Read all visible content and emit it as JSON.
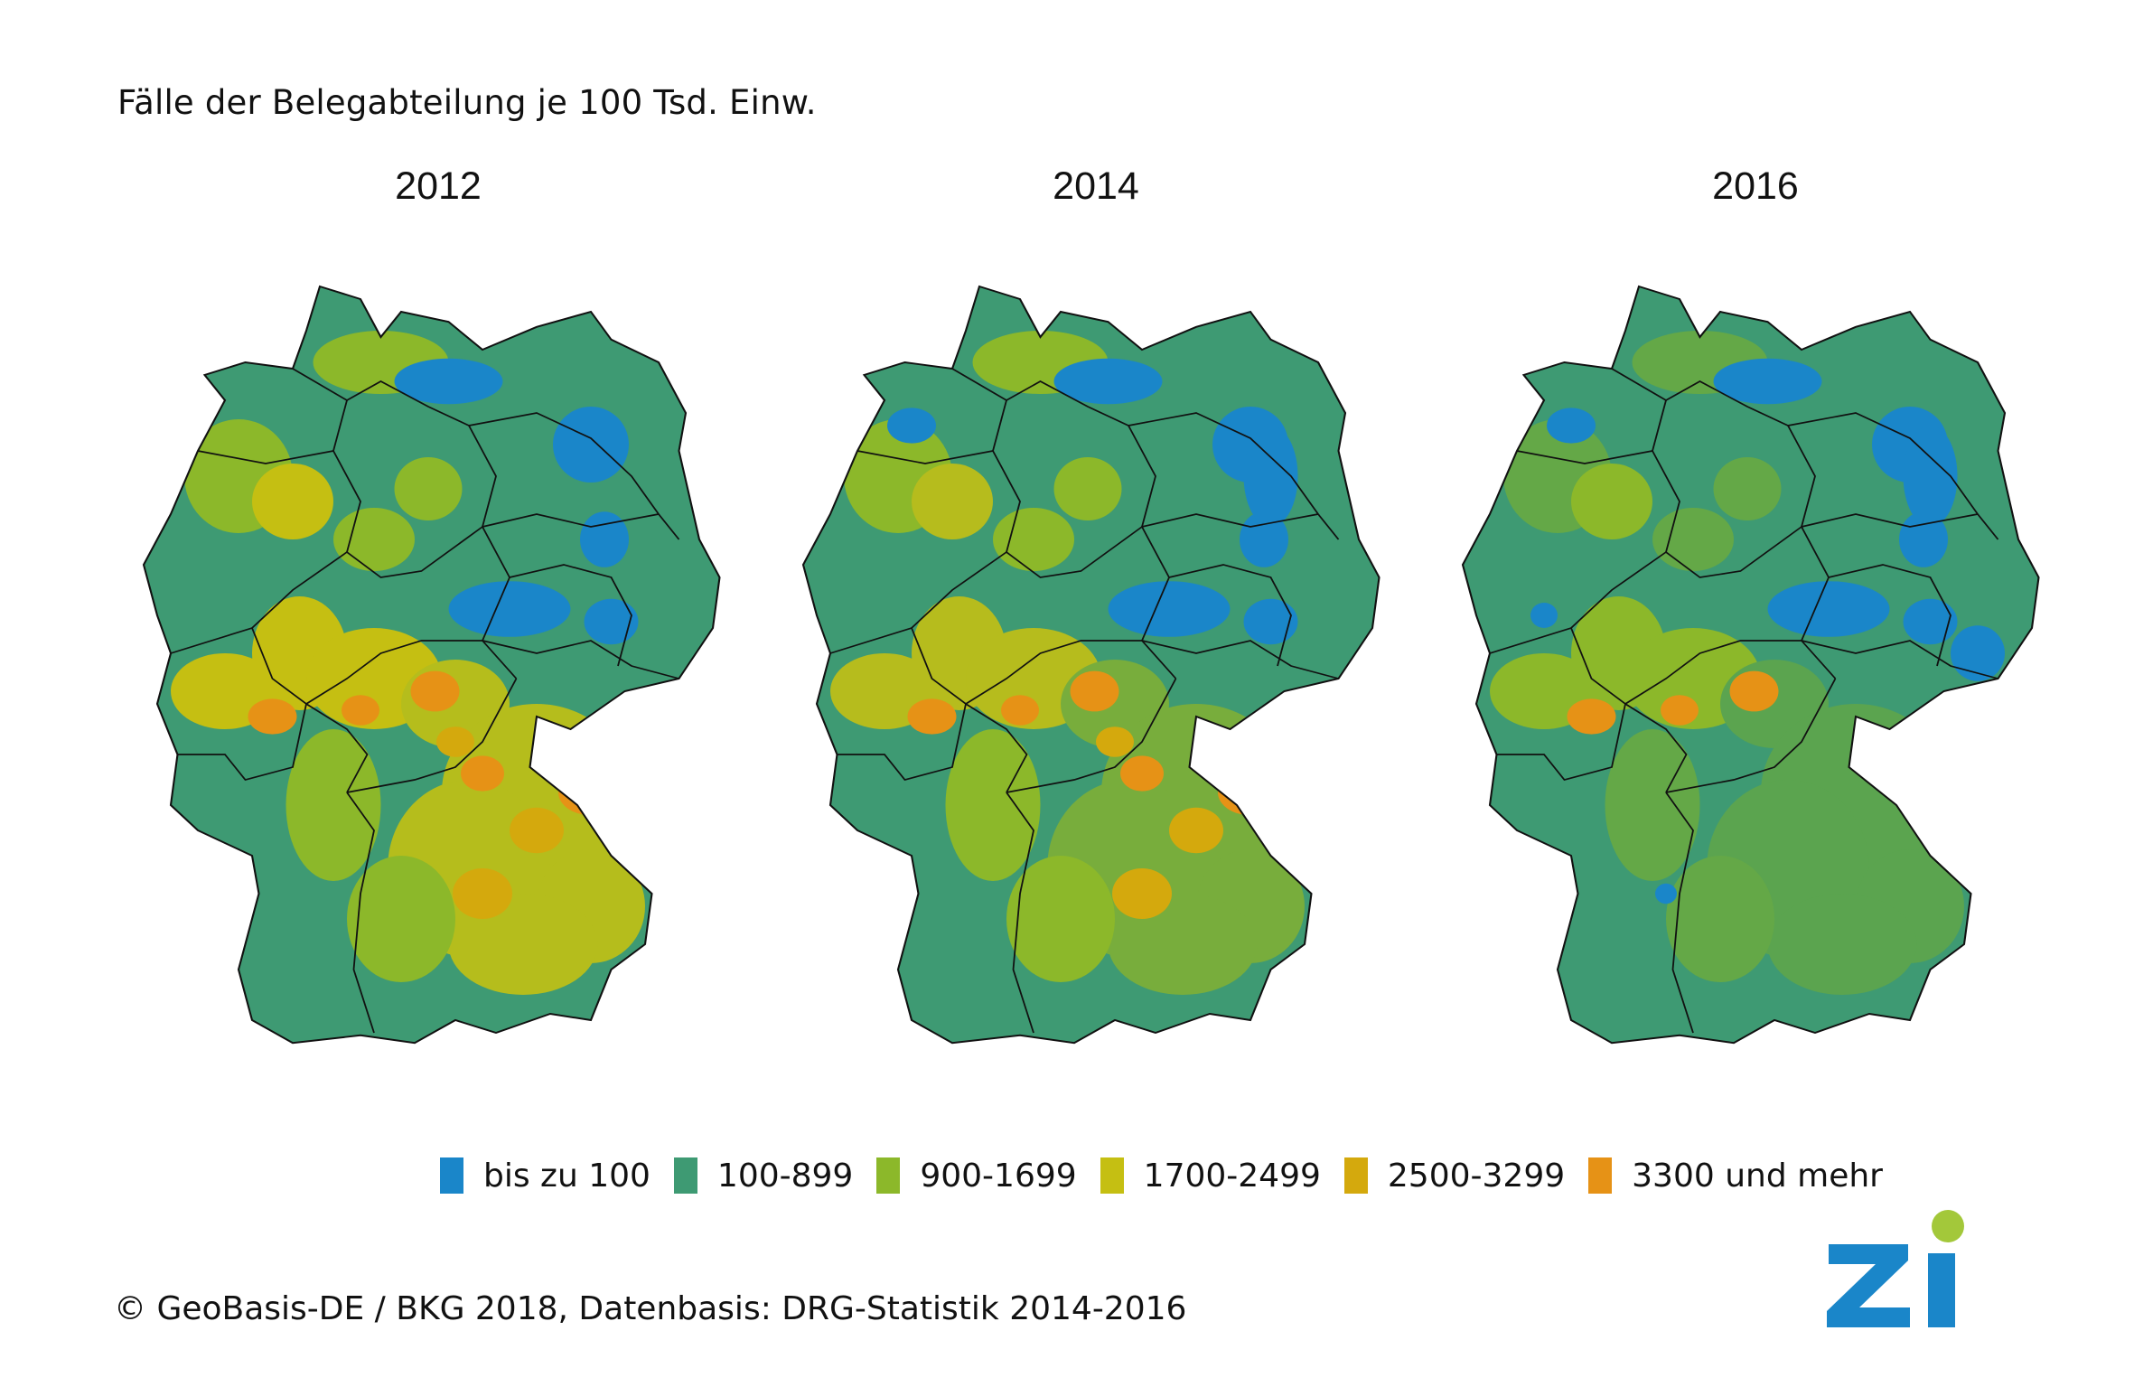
{
  "title": "Fälle der Belegabteilung je 100 Tsd. Einw.",
  "maps": [
    {
      "year": "2012",
      "colors": {
        "base": "#3e9a73",
        "nw": "#8cb82a",
        "rhine": "#c5bf12",
        "bavaria": "#b5bd1c",
        "hot": "#e69216",
        "hot2": "#d4a90d",
        "blue": "#1a86c9"
      }
    },
    {
      "year": "2014",
      "colors": {
        "base": "#3e9a73",
        "nw": "#8cb82a",
        "rhine": "#b6bc1d",
        "bavaria": "#78ad3c",
        "hot": "#e69216",
        "hot2": "#d4a90d",
        "blue": "#1a86c9"
      }
    },
    {
      "year": "2016",
      "colors": {
        "base": "#3e9a73",
        "nw": "#64a847",
        "rhine": "#8cb82a",
        "bavaria": "#5ba44f",
        "hot": "#e69216",
        "hot2": "#d4a90d",
        "blue": "#1a86c9"
      }
    }
  ],
  "legend": [
    {
      "label": "bis zu 100",
      "color": "#1a86c9"
    },
    {
      "label": "100-899",
      "color": "#3e9a73"
    },
    {
      "label": "900-1699",
      "color": "#8cb82a"
    },
    {
      "label": "1700-2499",
      "color": "#c5bf12"
    },
    {
      "label": "2500-3299",
      "color": "#d4a90d"
    },
    {
      "label": "3300 und mehr",
      "color": "#e69216"
    }
  ],
  "footer": "© GeoBasis-DE / BKG 2018, Datenbasis: DRG-Statistik 2014-2016",
  "logo": {
    "text": "Zi",
    "blue": "#1a86c9",
    "green": "#a3c83a"
  }
}
